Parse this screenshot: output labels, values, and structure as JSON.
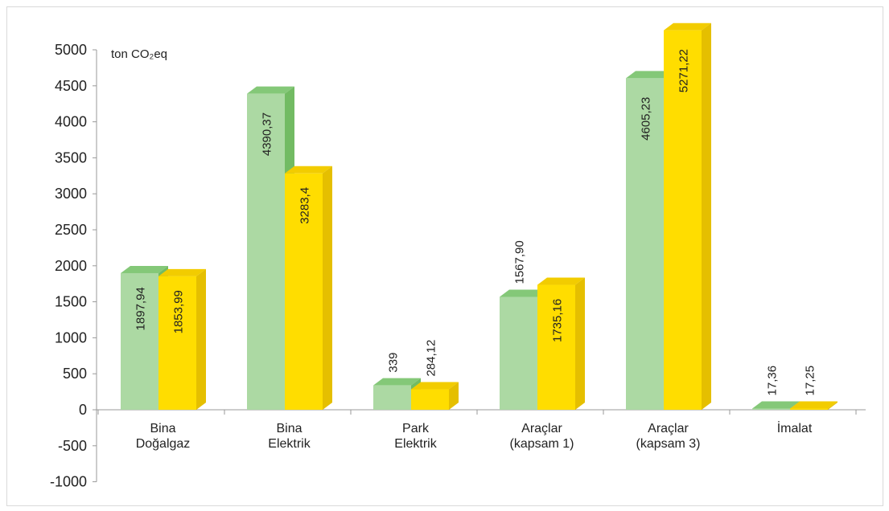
{
  "chart_data": {
    "type": "bar",
    "unit_label": "ton CO₂eq",
    "categories": [
      [
        "Bina",
        "Doğalgaz"
      ],
      [
        "Bina",
        "Elektrik"
      ],
      [
        "Park",
        "Elektrik"
      ],
      [
        "Araçlar",
        "(kapsam 1)"
      ],
      [
        "Araçlar",
        "(kapsam 3)"
      ],
      [
        "İmalat"
      ]
    ],
    "series": [
      {
        "values": [
          1897.94,
          4390.37,
          339,
          1567.9,
          4605.23,
          17.36
        ],
        "labels": [
          "1897,94",
          "4390,37",
          "339",
          "1567,90",
          "4605,23",
          "17,36"
        ],
        "color": "#acd9a3",
        "top_color": "#84c878",
        "side_color": "#72bb63"
      },
      {
        "values": [
          1853.99,
          3283.4,
          284.12,
          1735.16,
          5271.22,
          17.25
        ],
        "labels": [
          "1853,99",
          "3283,4",
          "284,12",
          "1735,16",
          "5271,22",
          "17,25"
        ],
        "color": "#ffdd00",
        "top_color": "#f2cc00",
        "side_color": "#e5bf00"
      }
    ],
    "ylim": [
      -1000,
      5000
    ],
    "yticks": [
      5000,
      4500,
      4000,
      3500,
      3000,
      2500,
      2000,
      1500,
      1000,
      500,
      0,
      -500,
      -1000
    ],
    "grid": false,
    "legend": "none"
  }
}
